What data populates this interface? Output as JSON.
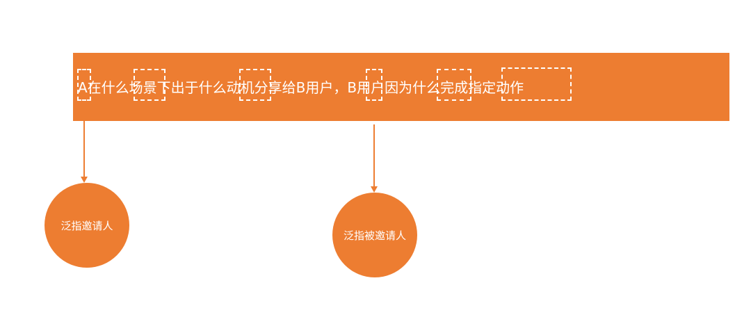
{
  "banner": {
    "sentence": "A在什么场景下出于什么动机分享给B用户，B用户因为什么完成指定动作"
  },
  "nodes": {
    "inviter_label": "泛指邀请人",
    "invitee_label": "泛指被邀请人"
  },
  "colors": {
    "accent": "#ED7D31",
    "text": "#FFFFFF"
  }
}
